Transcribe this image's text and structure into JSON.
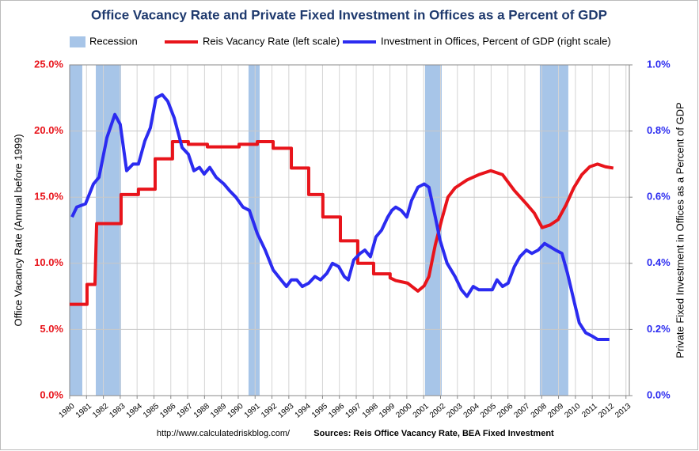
{
  "chart_data": {
    "type": "line",
    "title": "Office Vacancy Rate and Private Fixed Investment in Offices as a Percent of GDP",
    "ylabel": "Office Vacancy Rate (Annual before 1999)",
    "y2label": "Private Fixed Investment in Offices as a Percent of GDP",
    "footer_url": "http://www.calculatedriskblog.com/",
    "footer_source": "Sources: Reis Office Vacancy Rate, BEA Fixed Investment",
    "xlim": [
      1980,
      2013.2
    ],
    "xticks": [
      1980,
      1981,
      1982,
      1983,
      1984,
      1985,
      1986,
      1987,
      1988,
      1989,
      1990,
      1991,
      1992,
      1993,
      1994,
      1995,
      1996,
      1997,
      1998,
      1999,
      2000,
      2001,
      2002,
      2003,
      2004,
      2005,
      2006,
      2007,
      2008,
      2009,
      2010,
      2011,
      2012,
      2013
    ],
    "ylim": [
      0,
      25
    ],
    "yticks": [
      {
        "value": 0,
        "label": "0.0%"
      },
      {
        "value": 5,
        "label": "5.0%"
      },
      {
        "value": 10,
        "label": "10.0%"
      },
      {
        "value": 15,
        "label": "15.0%"
      },
      {
        "value": 20,
        "label": "20.0%"
      },
      {
        "value": 25,
        "label": "25.0%"
      }
    ],
    "y2lim": [
      0,
      1
    ],
    "y2ticks": [
      {
        "value": 0,
        "label": "0.0%"
      },
      {
        "value": 0.2,
        "label": "0.2%"
      },
      {
        "value": 0.4,
        "label": "0.4%"
      },
      {
        "value": 0.6,
        "label": "0.6%"
      },
      {
        "value": 0.8,
        "label": "0.8%"
      },
      {
        "value": 1,
        "label": "1.0%"
      }
    ],
    "grid": true,
    "legend": "top",
    "recession": {
      "name": "Recession",
      "color": "#a7c5e8",
      "ranges": [
        [
          1980,
          1980.75
        ],
        [
          1981.55,
          1983.05
        ],
        [
          1990.61,
          1991.27
        ],
        [
          2001.08,
          2002.07
        ],
        [
          2007.89,
          2009.58
        ]
      ]
    },
    "series": [
      {
        "name": "Reis Vacancy Rate (left scale)",
        "color": "#e8141b",
        "axis": "y",
        "x": [
          1980,
          1981.03,
          1981.03,
          1981.5,
          1981.6,
          1983.05,
          1983.05,
          1984.08,
          1984.08,
          1985.07,
          1985.07,
          1986.1,
          1986.1,
          1987.04,
          1987.04,
          1988.17,
          1988.17,
          1990.05,
          1990.05,
          1991.13,
          1991.13,
          1992.07,
          1992.07,
          1993.15,
          1993.15,
          1994.18,
          1994.18,
          1995.02,
          1995.02,
          1996.06,
          1996.06,
          1997.09,
          1997.09,
          1998.03,
          1998.03,
          1999.01,
          1999.01,
          1999.34,
          2000.05,
          2000.66,
          2001.03,
          2001.31,
          2001.69,
          2002.07,
          2002.44,
          2002.86,
          2003.57,
          2004.27,
          2004.98,
          2005.68,
          2006.38,
          2007.09,
          2007.56,
          2008.03,
          2008.5,
          2008.97,
          2009.44,
          2009.9,
          2010.38,
          2010.85,
          2011.31,
          2011.78,
          2012.25
        ],
        "values": [
          6.9,
          6.9,
          8.4,
          8.4,
          13.0,
          13.0,
          15.2,
          15.2,
          15.6,
          15.6,
          17.9,
          17.9,
          19.2,
          19.2,
          19.0,
          19.0,
          18.8,
          18.8,
          19.0,
          19.0,
          19.2,
          19.2,
          18.7,
          18.7,
          17.2,
          17.2,
          15.2,
          15.2,
          13.5,
          13.5,
          11.7,
          11.7,
          10.0,
          10.0,
          9.2,
          9.2,
          8.9,
          8.7,
          8.5,
          7.9,
          8.3,
          9.0,
          11.4,
          13.3,
          15.0,
          15.7,
          16.3,
          16.7,
          17.0,
          16.7,
          15.5,
          14.5,
          13.8,
          12.7,
          12.9,
          13.3,
          14.4,
          15.7,
          16.7,
          17.3,
          17.5,
          17.3,
          17.2
        ]
      },
      {
        "name": "Investment in Offices, Percent of GDP (right scale)",
        "color": "#2b2bf0",
        "axis": "y2",
        "x": [
          1980.14,
          1980.42,
          1980.94,
          1981.41,
          1981.74,
          1982.21,
          1982.68,
          1983.0,
          1983.38,
          1983.76,
          1984.08,
          1984.46,
          1984.79,
          1985.12,
          1985.49,
          1985.82,
          1986.2,
          1986.67,
          1987.04,
          1987.37,
          1987.7,
          1987.98,
          1988.31,
          1988.69,
          1989.15,
          1989.48,
          1989.86,
          1990.28,
          1990.66,
          1991.13,
          1991.6,
          1992.07,
          1992.54,
          1992.86,
          1993.15,
          1993.47,
          1993.8,
          1994.18,
          1994.55,
          1994.88,
          1995.26,
          1995.59,
          1995.96,
          1996.29,
          1996.53,
          1996.85,
          1997.23,
          1997.51,
          1997.84,
          1998.17,
          1998.5,
          1998.87,
          1999.11,
          1999.34,
          1999.67,
          2000.0,
          2000.28,
          2000.66,
          2001.03,
          2001.31,
          2001.69,
          2001.97,
          2002.39,
          2002.86,
          2003.24,
          2003.57,
          2003.94,
          2004.27,
          2004.74,
          2005.07,
          2005.35,
          2005.68,
          2006.01,
          2006.38,
          2006.71,
          2007.09,
          2007.42,
          2007.79,
          2008.17,
          2008.5,
          2008.83,
          2009.2,
          2009.53,
          2009.9,
          2010.23,
          2010.61,
          2010.99,
          2011.31,
          2011.64,
          2012.02
        ],
        "values": [
          0.54,
          0.57,
          0.58,
          0.64,
          0.66,
          0.78,
          0.85,
          0.82,
          0.68,
          0.7,
          0.7,
          0.77,
          0.81,
          0.9,
          0.91,
          0.89,
          0.84,
          0.75,
          0.73,
          0.68,
          0.69,
          0.67,
          0.69,
          0.66,
          0.64,
          0.62,
          0.6,
          0.57,
          0.56,
          0.49,
          0.44,
          0.38,
          0.35,
          0.33,
          0.35,
          0.35,
          0.33,
          0.34,
          0.36,
          0.35,
          0.37,
          0.4,
          0.39,
          0.36,
          0.35,
          0.41,
          0.43,
          0.44,
          0.42,
          0.48,
          0.5,
          0.54,
          0.56,
          0.57,
          0.56,
          0.54,
          0.59,
          0.63,
          0.64,
          0.63,
          0.54,
          0.47,
          0.4,
          0.36,
          0.32,
          0.3,
          0.33,
          0.32,
          0.32,
          0.32,
          0.35,
          0.33,
          0.34,
          0.39,
          0.42,
          0.44,
          0.43,
          0.44,
          0.46,
          0.45,
          0.44,
          0.43,
          0.37,
          0.29,
          0.22,
          0.19,
          0.18,
          0.17,
          0.17,
          0.17
        ]
      }
    ]
  }
}
